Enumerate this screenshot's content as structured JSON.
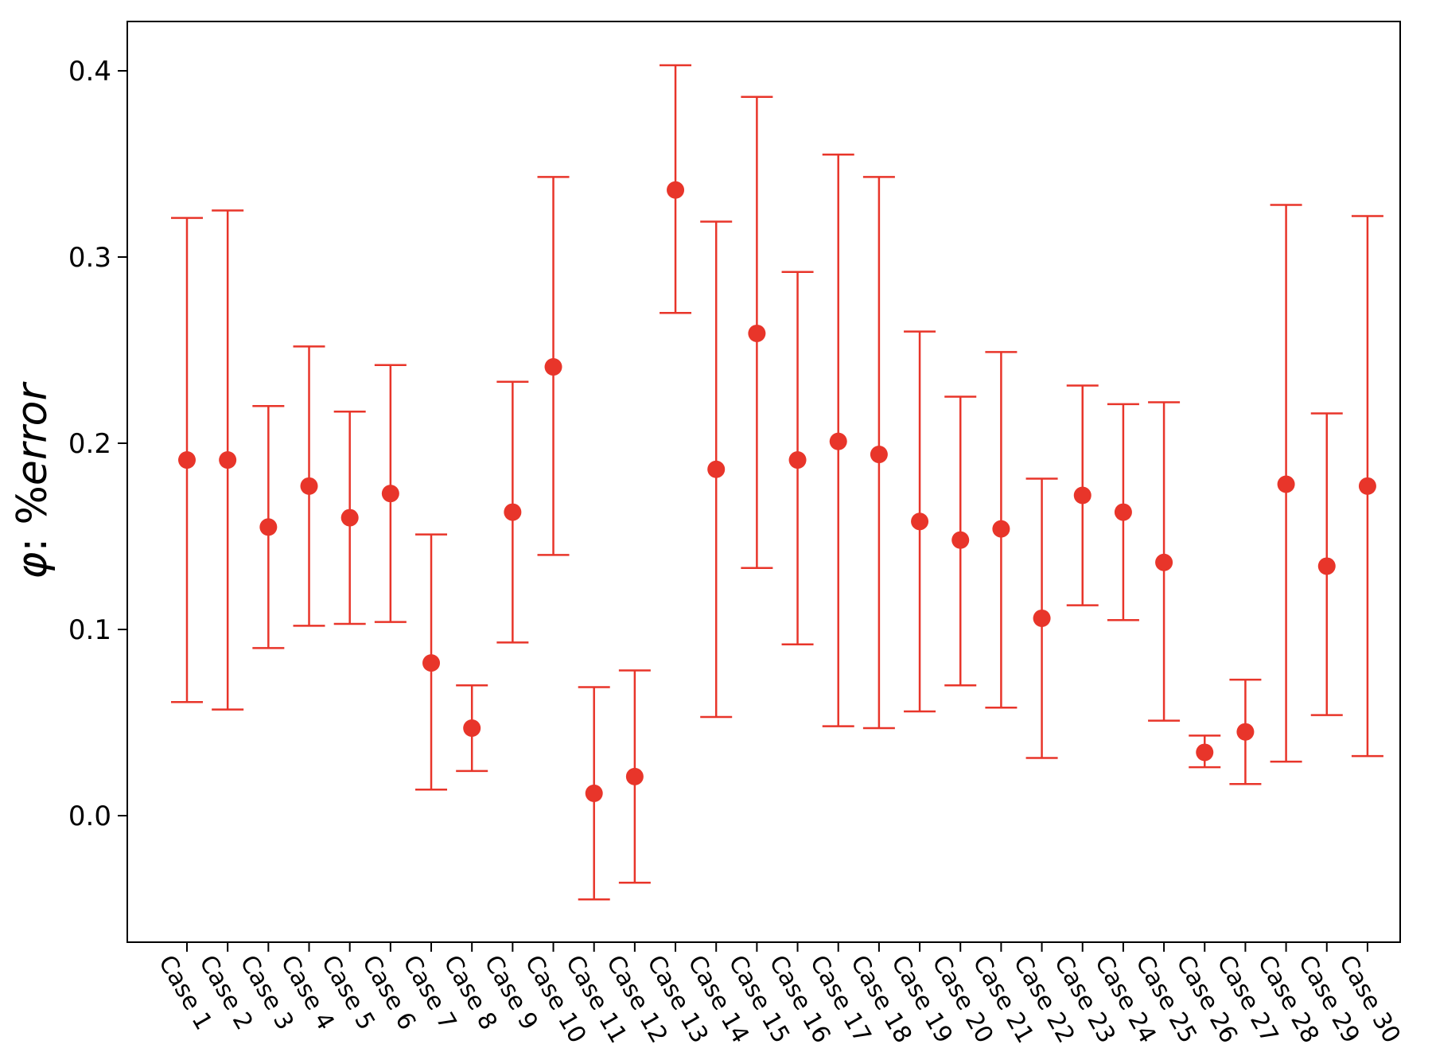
{
  "chart_data": {
    "type": "scatter",
    "ylabel_symbol": "φ",
    "ylabel_text": ": %",
    "ylabel_italic": "error",
    "ylim": [
      -0.068,
      0.425
    ],
    "yticks": [
      0.0,
      0.1,
      0.2,
      0.3,
      0.4
    ],
    "ytick_labels": [
      "0.0",
      "0.1",
      "0.2",
      "0.3",
      "0.4"
    ],
    "grid": false,
    "color": "#e8352a",
    "categories": [
      "Case 1",
      "Case 2",
      "Case 3",
      "Case 4",
      "Case 5",
      "Case 6",
      "Case 7",
      "Case 8",
      "Case 9",
      "Case 10",
      "Case 11",
      "Case 12",
      "Case 13",
      "Case 14",
      "Case 15",
      "Case 16",
      "Case 17",
      "Case 18",
      "Case 19",
      "Case 20",
      "Case 21",
      "Case 22",
      "Case 23",
      "Case 24",
      "Case 25",
      "Case 26",
      "Case 27",
      "Case 28",
      "Case 29",
      "Case 30"
    ],
    "values": [
      0.191,
      0.191,
      0.155,
      0.177,
      0.16,
      0.173,
      0.082,
      0.047,
      0.163,
      0.241,
      0.012,
      0.021,
      0.336,
      0.186,
      0.259,
      0.191,
      0.201,
      0.194,
      0.158,
      0.148,
      0.154,
      0.106,
      0.172,
      0.163,
      0.136,
      0.034,
      0.045,
      0.178,
      0.134,
      0.177
    ],
    "err_low": [
      0.061,
      0.057,
      0.09,
      0.102,
      0.103,
      0.104,
      0.014,
      0.024,
      0.093,
      0.14,
      -0.045,
      -0.036,
      0.27,
      0.053,
      0.133,
      0.092,
      0.048,
      0.047,
      0.056,
      0.07,
      0.058,
      0.031,
      0.113,
      0.105,
      0.051,
      0.026,
      0.017,
      0.029,
      0.054,
      0.032
    ],
    "err_high": [
      0.321,
      0.325,
      0.22,
      0.252,
      0.217,
      0.242,
      0.151,
      0.07,
      0.233,
      0.343,
      0.069,
      0.078,
      0.403,
      0.319,
      0.386,
      0.292,
      0.355,
      0.343,
      0.26,
      0.225,
      0.249,
      0.181,
      0.231,
      0.221,
      0.222,
      0.043,
      0.073,
      0.328,
      0.216,
      0.322
    ]
  }
}
